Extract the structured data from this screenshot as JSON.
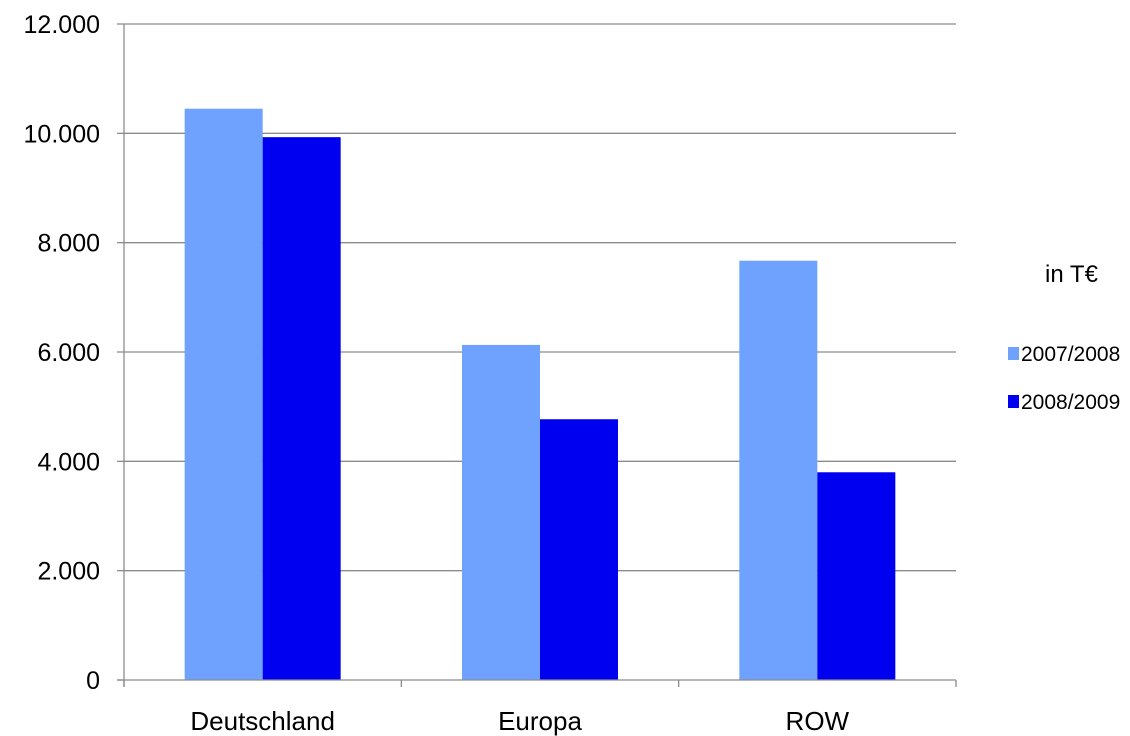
{
  "chart_data": {
    "type": "bar",
    "categories": [
      "Deutschland",
      "Europa",
      "ROW"
    ],
    "series": [
      {
        "name": "2007/2008",
        "values": [
          10450,
          6130,
          7670
        ],
        "color": "#6FA1FF"
      },
      {
        "name": "2008/2009",
        "values": [
          9930,
          4770,
          3800
        ],
        "color": "#0000F0"
      }
    ],
    "y_ticks": [
      0,
      2000,
      4000,
      6000,
      8000,
      10000,
      12000
    ],
    "y_tick_labels": [
      "0",
      "2.000",
      "4.000",
      "6.000",
      "8.000",
      "10.000",
      "12.000"
    ],
    "ylim": [
      0,
      12000
    ],
    "grid": true,
    "unit_label": "in T€",
    "legend_position": "right"
  }
}
